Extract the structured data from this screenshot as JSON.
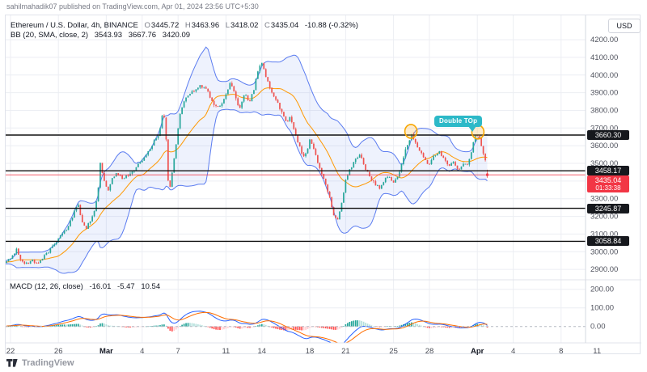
{
  "header": {
    "published": "sahilmahadik07 published on TradingView.com, Apr 01, 2024 23:56 UTC+5:30"
  },
  "footer": {
    "brand": "TradingView"
  },
  "legend": {
    "title": "Ethereum / U.S. Dollar, 4h, BINANCE",
    "ohlc": {
      "o_label": "O",
      "o": "3445.72",
      "h_label": "H",
      "h": "3463.96",
      "l_label": "L",
      "l": "3418.02",
      "c_label": "C",
      "c": "3435.04",
      "change": "-10.88 (-0.32%)"
    },
    "bb": {
      "title": "BB (20, SMA, close, 2)",
      "basis": "3543.93",
      "upper": "3667.76",
      "lower": "3420.09"
    },
    "macd": {
      "title": "MACD (12, 26, close)",
      "histogram": "-16.01",
      "macd": "-5.47",
      "signal": "10.54"
    }
  },
  "axis": {
    "currency": "USD",
    "price_ticks": [
      4200,
      4100,
      4000,
      3900,
      3800,
      3700,
      3600,
      3500,
      3400,
      3300,
      3200,
      3100,
      3000,
      2900
    ],
    "macd_ticks": [
      200,
      100,
      0
    ],
    "time_ticks": [
      {
        "label": "22",
        "d": 0
      },
      {
        "label": "26",
        "d": 4
      },
      {
        "label": "Mar",
        "d": 8,
        "major": true
      },
      {
        "label": "4",
        "d": 11
      },
      {
        "label": "7",
        "d": 14
      },
      {
        "label": "11",
        "d": 18
      },
      {
        "label": "14",
        "d": 21
      },
      {
        "label": "18",
        "d": 25
      },
      {
        "label": "21",
        "d": 28
      },
      {
        "label": "25",
        "d": 32
      },
      {
        "label": "28",
        "d": 35
      },
      {
        "label": "Apr",
        "d": 39,
        "major": true
      },
      {
        "label": "4",
        "d": 42
      },
      {
        "label": "8",
        "d": 46
      },
      {
        "label": "11",
        "d": 49
      }
    ],
    "price_labels": [
      {
        "text": "3660.30",
        "price": 3660.3,
        "kind": "line"
      },
      {
        "text": "3458.17",
        "price": 3458.17,
        "kind": "line"
      },
      {
        "text": "3435.04",
        "price": 3435.04,
        "kind": "current",
        "countdown": "01:33:38"
      },
      {
        "text": "3245.87",
        "price": 3245.87,
        "kind": "line"
      },
      {
        "text": "3058.84",
        "price": 3058.84,
        "kind": "line"
      }
    ]
  },
  "annotations": {
    "callout": {
      "text": "Double TOp"
    },
    "circles": [
      {
        "d": 33.45,
        "price": 3672
      },
      {
        "d": 39.05,
        "price": 3668
      }
    ]
  },
  "chart_data": {
    "type": "candlestick",
    "symbol": "Ethereum / U.S. Dollar",
    "exchange": "BINANCE",
    "interval": "4h",
    "y_range": [
      2841,
      4338
    ],
    "horizontal_lines": [
      3660.3,
      3458.17,
      3245.87,
      3058.84
    ],
    "current_price": 3435.04,
    "last_candle": {
      "open": 3445.72,
      "high": 3463.96,
      "low": 3418.02,
      "close": 3435.04
    },
    "bollinger": {
      "length": 20,
      "stdev": 2,
      "last": {
        "basis": 3543.93,
        "upper": 3667.76,
        "lower": 3420.09
      }
    },
    "macd": {
      "fast": 12,
      "slow": 26,
      "signal": 9,
      "last": {
        "macd": -5.47,
        "signal": 10.54,
        "histogram": -16.01
      }
    },
    "price_waypoints": [
      [
        -6,
        2915
      ],
      [
        -5,
        2940
      ],
      [
        -4,
        2925
      ],
      [
        -3,
        2950
      ],
      [
        -2,
        2935
      ],
      [
        -1.2,
        2945
      ],
      [
        -0.45,
        2940
      ],
      [
        0.2,
        2978
      ],
      [
        0.5,
        3015
      ],
      [
        0.85,
        2952
      ],
      [
        1.3,
        2930
      ],
      [
        1.8,
        2952
      ],
      [
        2.25,
        2934
      ],
      [
        2.7,
        2968
      ],
      [
        3.2,
        3002
      ],
      [
        3.7,
        3048
      ],
      [
        4.2,
        3088
      ],
      [
        4.7,
        3132
      ],
      [
        5.1,
        3185
      ],
      [
        5.45,
        3258
      ],
      [
        5.65,
        3268
      ],
      [
        5.95,
        3178
      ],
      [
        6.35,
        3136
      ],
      [
        6.7,
        3182
      ],
      [
        7.05,
        3235
      ],
      [
        7.3,
        3345
      ],
      [
        7.5,
        3498
      ],
      [
        7.65,
        3452
      ],
      [
        7.9,
        3382
      ],
      [
        8.15,
        3352
      ],
      [
        8.55,
        3418
      ],
      [
        8.9,
        3448
      ],
      [
        9.3,
        3412
      ],
      [
        9.7,
        3428
      ],
      [
        10.1,
        3452
      ],
      [
        10.55,
        3482
      ],
      [
        11,
        3518
      ],
      [
        11.5,
        3568
      ],
      [
        12,
        3628
      ],
      [
        12.4,
        3668
      ],
      [
        12.75,
        3798
      ],
      [
        12.95,
        3715
      ],
      [
        13.15,
        3408
      ],
      [
        13.35,
        3368
      ],
      [
        13.6,
        3498
      ],
      [
        13.9,
        3645
      ],
      [
        14.2,
        3792
      ],
      [
        14.55,
        3858
      ],
      [
        14.9,
        3888
      ],
      [
        15.4,
        3918
      ],
      [
        15.9,
        3938
      ],
      [
        16.4,
        3912
      ],
      [
        16.9,
        3842
      ],
      [
        17.4,
        3812
      ],
      [
        17.9,
        3878
      ],
      [
        18.35,
        3952
      ],
      [
        18.7,
        3908
      ],
      [
        19.1,
        3808
      ],
      [
        19.55,
        3898
      ],
      [
        19.95,
        3848
      ],
      [
        20.35,
        3922
      ],
      [
        20.7,
        4038
      ],
      [
        21.05,
        4068
      ],
      [
        21.35,
        3992
      ],
      [
        21.7,
        3928
      ],
      [
        22.1,
        3868
      ],
      [
        22.6,
        3798
      ],
      [
        23.1,
        3728
      ],
      [
        23.35,
        3758
      ],
      [
        23.7,
        3682
      ],
      [
        24.1,
        3602
      ],
      [
        24.45,
        3528
      ],
      [
        24.75,
        3568
      ],
      [
        25.05,
        3642
      ],
      [
        25.4,
        3562
      ],
      [
        25.75,
        3488
      ],
      [
        26.2,
        3408
      ],
      [
        26.6,
        3322
      ],
      [
        27,
        3208
      ],
      [
        27.3,
        3168
      ],
      [
        27.6,
        3258
      ],
      [
        28,
        3402
      ],
      [
        28.4,
        3472
      ],
      [
        28.8,
        3522
      ],
      [
        29.2,
        3548
      ],
      [
        29.6,
        3478
      ],
      [
        30,
        3428
      ],
      [
        30.4,
        3388
      ],
      [
        30.8,
        3358
      ],
      [
        31.2,
        3402
      ],
      [
        31.6,
        3428
      ],
      [
        32,
        3388
      ],
      [
        32.4,
        3438
      ],
      [
        32.8,
        3528
      ],
      [
        33.2,
        3618
      ],
      [
        33.5,
        3658
      ],
      [
        33.8,
        3628
      ],
      [
        34.2,
        3568
      ],
      [
        34.6,
        3518
      ],
      [
        35,
        3488
      ],
      [
        35.4,
        3548
      ],
      [
        35.8,
        3568
      ],
      [
        36.2,
        3528
      ],
      [
        36.6,
        3488
      ],
      [
        37,
        3508
      ],
      [
        37.4,
        3468
      ],
      [
        37.8,
        3488
      ],
      [
        38.2,
        3498
      ],
      [
        38.5,
        3568
      ],
      [
        38.8,
        3648
      ],
      [
        39.05,
        3662
      ],
      [
        39.25,
        3618
      ],
      [
        39.45,
        3568
      ],
      [
        39.65,
        3522
      ],
      [
        39.82,
        3446
      ]
    ]
  },
  "colors": {
    "up": "#26a69a",
    "down": "#ef5350",
    "bb_band": "#5b7cf0",
    "bb_fill": "rgba(91,124,240,0.10)",
    "bb_basis": "#ff9800",
    "macd_line": "#2962ff",
    "signal_line": "#ff6d00",
    "hist_grow_pos": "#26a69a",
    "hist_fall_pos": "#b2dfdb",
    "hist_grow_neg": "#ffcdd2",
    "hist_fall_neg": "#ff5252",
    "hline": "#111111",
    "current": "#f23645",
    "grid": "#eceef3",
    "separator": "#e0e3eb",
    "legend_val": "#f23645",
    "legend_basis": "#ff9800",
    "legend_upper": "#f23645",
    "legend_lower": "#2962ff",
    "callout": "#2cb9c8",
    "circle": "#f7a600"
  }
}
